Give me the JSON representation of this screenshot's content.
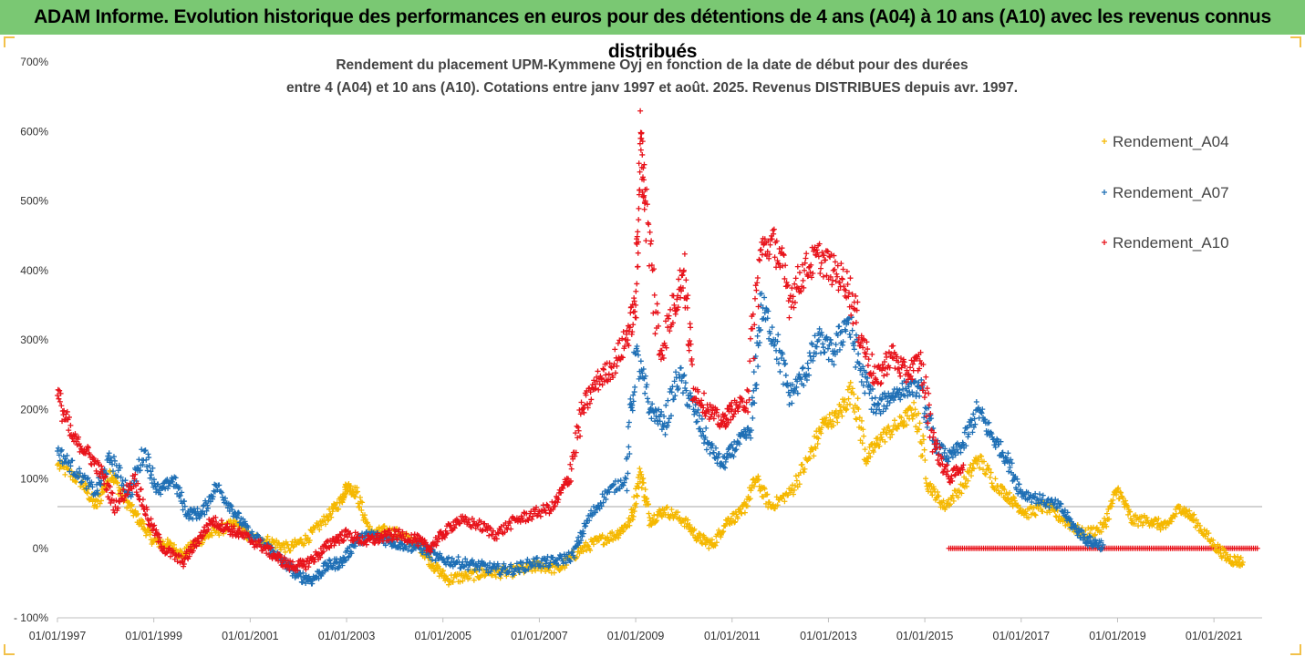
{
  "banner": {
    "text": "ADAM Informe. Evolution historique des performances en euros pour des détentions de 4 ans (A04) à 10 ans (A10) avec les revenus connus distribués",
    "background": "#7ac873"
  },
  "chart_data": {
    "type": "scatter",
    "title_lines": [
      "Rendement du placement UPM-Kymmene Oyj en fonction de la date de début pour des durées",
      "entre 4 (A04) et 10 ans (A10). Cotations entre janv 1997 et août. 2025. Revenus DISTRIBUES depuis avr. 1997."
    ],
    "xlabel": "",
    "ylabel": "",
    "ylim": [
      -100,
      700
    ],
    "xlim": [
      "1997-01-01",
      "2022-01-01"
    ],
    "y_ticks": [
      "700%",
      "600%",
      "500%",
      "400%",
      "300%",
      "200%",
      "100%",
      "0%",
      "- 100%"
    ],
    "y_tick_values": [
      700,
      600,
      500,
      400,
      300,
      200,
      100,
      0,
      -100
    ],
    "x_ticks": [
      "01/01/1997",
      "01/01/1999",
      "01/01/2001",
      "01/01/2003",
      "01/01/2005",
      "01/01/2007",
      "01/01/2009",
      "01/01/2011",
      "01/01/2013",
      "01/01/2015",
      "01/01/2017",
      "01/01/2019",
      "01/01/2021"
    ],
    "x_tick_years": [
      1997,
      1999,
      2001,
      2003,
      2005,
      2007,
      2009,
      2011,
      2013,
      2015,
      2017,
      2019,
      2021
    ],
    "reference_line_y": 60,
    "grid": false,
    "legend_position": "right",
    "series": [
      {
        "name": "Rendement_A04",
        "color": "#f5b800",
        "marker": "plus",
        "points": [
          [
            1997.0,
            120
          ],
          [
            1997.5,
            95
          ],
          [
            1997.8,
            60
          ],
          [
            1998.1,
            110
          ],
          [
            1998.4,
            70
          ],
          [
            1998.7,
            40
          ],
          [
            1999.0,
            10
          ],
          [
            1999.3,
            5
          ],
          [
            1999.6,
            -10
          ],
          [
            1999.9,
            10
          ],
          [
            2000.3,
            25
          ],
          [
            2000.7,
            35
          ],
          [
            2001.0,
            15
          ],
          [
            2001.4,
            10
          ],
          [
            2001.8,
            0
          ],
          [
            2002.2,
            15
          ],
          [
            2002.6,
            45
          ],
          [
            2002.9,
            70
          ],
          [
            2003.0,
            90
          ],
          [
            2003.2,
            80
          ],
          [
            2003.5,
            20
          ],
          [
            2003.8,
            25
          ],
          [
            2004.1,
            20
          ],
          [
            2004.5,
            5
          ],
          [
            2004.8,
            -25
          ],
          [
            2005.1,
            -45
          ],
          [
            2005.5,
            -40
          ],
          [
            2005.9,
            -35
          ],
          [
            2006.3,
            -35
          ],
          [
            2006.7,
            -30
          ],
          [
            2007.0,
            -25
          ],
          [
            2007.4,
            -30
          ],
          [
            2007.8,
            -5
          ],
          [
            2008.2,
            10
          ],
          [
            2008.6,
            20
          ],
          [
            2008.9,
            40
          ],
          [
            2009.1,
            110
          ],
          [
            2009.3,
            40
          ],
          [
            2009.6,
            55
          ],
          [
            2010.0,
            40
          ],
          [
            2010.3,
            15
          ],
          [
            2010.6,
            5
          ],
          [
            2010.9,
            40
          ],
          [
            2011.2,
            50
          ],
          [
            2011.5,
            100
          ],
          [
            2011.8,
            60
          ],
          [
            2012.2,
            80
          ],
          [
            2012.6,
            130
          ],
          [
            2012.9,
            180
          ],
          [
            2013.2,
            190
          ],
          [
            2013.5,
            230
          ],
          [
            2013.8,
            130
          ],
          [
            2014.1,
            160
          ],
          [
            2014.5,
            180
          ],
          [
            2014.8,
            200
          ],
          [
            2015.1,
            90
          ],
          [
            2015.4,
            60
          ],
          [
            2015.8,
            90
          ],
          [
            2016.1,
            130
          ],
          [
            2016.5,
            90
          ],
          [
            2016.8,
            70
          ],
          [
            2017.1,
            50
          ],
          [
            2017.5,
            60
          ],
          [
            2017.9,
            40
          ],
          [
            2018.3,
            20
          ],
          [
            2018.7,
            30
          ],
          [
            2019.0,
            85
          ],
          [
            2019.3,
            40
          ],
          [
            2019.7,
            40
          ],
          [
            2020.0,
            30
          ],
          [
            2020.3,
            60
          ],
          [
            2020.6,
            40
          ],
          [
            2021.0,
            5
          ],
          [
            2021.3,
            -15
          ],
          [
            2021.6,
            -20
          ]
        ]
      },
      {
        "name": "Rendement_A07",
        "color": "#1e6fb5",
        "marker": "plus",
        "points": [
          [
            1997.0,
            140
          ],
          [
            1997.4,
            110
          ],
          [
            1997.8,
            80
          ],
          [
            1998.1,
            130
          ],
          [
            1998.5,
            80
          ],
          [
            1998.8,
            140
          ],
          [
            1999.1,
            80
          ],
          [
            1999.4,
            100
          ],
          [
            1999.7,
            50
          ],
          [
            2000.0,
            50
          ],
          [
            2000.3,
            90
          ],
          [
            2000.7,
            50
          ],
          [
            2001.0,
            20
          ],
          [
            2001.4,
            0
          ],
          [
            2001.7,
            -20
          ],
          [
            2002.0,
            -40
          ],
          [
            2002.3,
            -45
          ],
          [
            2002.6,
            -25
          ],
          [
            2002.9,
            -20
          ],
          [
            2003.2,
            10
          ],
          [
            2003.5,
            20
          ],
          [
            2003.9,
            10
          ],
          [
            2004.2,
            5
          ],
          [
            2004.6,
            0
          ],
          [
            2004.9,
            -15
          ],
          [
            2005.3,
            -20
          ],
          [
            2005.7,
            -25
          ],
          [
            2006.1,
            -30
          ],
          [
            2006.5,
            -30
          ],
          [
            2006.9,
            -20
          ],
          [
            2007.3,
            -20
          ],
          [
            2007.7,
            -10
          ],
          [
            2008.0,
            40
          ],
          [
            2008.4,
            80
          ],
          [
            2008.8,
            100
          ],
          [
            2009.0,
            280
          ],
          [
            2009.3,
            200
          ],
          [
            2009.6,
            180
          ],
          [
            2009.9,
            250
          ],
          [
            2010.2,
            200
          ],
          [
            2010.5,
            150
          ],
          [
            2010.8,
            120
          ],
          [
            2011.1,
            150
          ],
          [
            2011.4,
            170
          ],
          [
            2011.6,
            350
          ],
          [
            2011.9,
            300
          ],
          [
            2012.2,
            220
          ],
          [
            2012.5,
            250
          ],
          [
            2012.8,
            300
          ],
          [
            2013.1,
            280
          ],
          [
            2013.4,
            330
          ],
          [
            2013.7,
            250
          ],
          [
            2014.0,
            200
          ],
          [
            2014.3,
            220
          ],
          [
            2014.6,
            230
          ],
          [
            2014.9,
            230
          ],
          [
            2015.2,
            150
          ],
          [
            2015.5,
            130
          ],
          [
            2015.8,
            150
          ],
          [
            2016.1,
            200
          ],
          [
            2016.4,
            160
          ],
          [
            2016.7,
            130
          ],
          [
            2017.0,
            80
          ],
          [
            2017.4,
            70
          ],
          [
            2017.8,
            60
          ],
          [
            2018.1,
            30
          ],
          [
            2018.4,
            10
          ],
          [
            2018.7,
            5
          ]
        ]
      },
      {
        "name": "Rendement_A10",
        "color": "#e8131b",
        "marker": "plus",
        "points": [
          [
            1997.0,
            220
          ],
          [
            1997.3,
            160
          ],
          [
            1997.6,
            140
          ],
          [
            1997.9,
            110
          ],
          [
            1998.2,
            60
          ],
          [
            1998.6,
            100
          ],
          [
            1998.9,
            40
          ],
          [
            1999.2,
            0
          ],
          [
            1999.6,
            -20
          ],
          [
            1999.9,
            10
          ],
          [
            2000.2,
            40
          ],
          [
            2000.5,
            30
          ],
          [
            2000.8,
            20
          ],
          [
            2001.2,
            5
          ],
          [
            2001.5,
            -10
          ],
          [
            2001.8,
            -25
          ],
          [
            2002.1,
            -25
          ],
          [
            2002.4,
            -10
          ],
          [
            2002.7,
            10
          ],
          [
            2003.0,
            20
          ],
          [
            2003.4,
            10
          ],
          [
            2003.7,
            15
          ],
          [
            2004.0,
            20
          ],
          [
            2004.4,
            15
          ],
          [
            2004.7,
            0
          ],
          [
            2005.0,
            20
          ],
          [
            2005.3,
            40
          ],
          [
            2005.7,
            35
          ],
          [
            2006.1,
            20
          ],
          [
            2006.5,
            40
          ],
          [
            2006.9,
            50
          ],
          [
            2007.3,
            60
          ],
          [
            2007.6,
            100
          ],
          [
            2007.9,
            200
          ],
          [
            2008.2,
            240
          ],
          [
            2008.5,
            260
          ],
          [
            2008.8,
            300
          ],
          [
            2009.0,
            350
          ],
          [
            2009.1,
            590
          ],
          [
            2009.2,
            500
          ],
          [
            2009.5,
            280
          ],
          [
            2009.8,
            350
          ],
          [
            2010.0,
            400
          ],
          [
            2010.2,
            230
          ],
          [
            2010.5,
            200
          ],
          [
            2010.8,
            180
          ],
          [
            2011.0,
            200
          ],
          [
            2011.3,
            210
          ],
          [
            2011.6,
            430
          ],
          [
            2011.9,
            440
          ],
          [
            2012.2,
            360
          ],
          [
            2012.5,
            400
          ],
          [
            2012.8,
            420
          ],
          [
            2013.1,
            400
          ],
          [
            2013.4,
            380
          ],
          [
            2013.7,
            300
          ],
          [
            2014.0,
            240
          ],
          [
            2014.3,
            280
          ],
          [
            2014.6,
            250
          ],
          [
            2014.9,
            270
          ],
          [
            2015.2,
            150
          ],
          [
            2015.5,
            100
          ],
          [
            2015.8,
            120
          ]
        ]
      }
    ],
    "flat_segment": {
      "name": "Rendement_A10",
      "color": "#e8131b",
      "x_start": 2015.5,
      "x_end": 2021.9,
      "y": 0
    }
  }
}
